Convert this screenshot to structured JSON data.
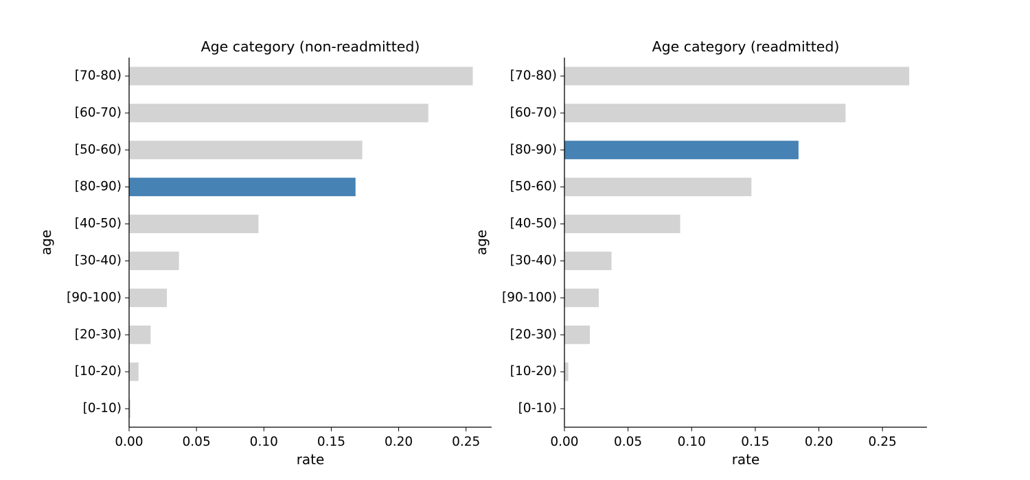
{
  "chart_data": [
    {
      "type": "bar",
      "orientation": "horizontal",
      "title": "Age category (non-readmitted)",
      "xlabel": "rate",
      "ylabel": "age",
      "categories": [
        "[70-80)",
        "[60-70)",
        "[50-60)",
        "[80-90)",
        "[40-50)",
        "[30-40)",
        "[90-100)",
        "[20-30)",
        "[10-20)",
        "[0-10)"
      ],
      "values": [
        0.255,
        0.222,
        0.173,
        0.168,
        0.096,
        0.037,
        0.028,
        0.016,
        0.007,
        0.001
      ],
      "highlight": "[80-90)",
      "xlim": [
        0,
        0.269
      ],
      "xticks": [
        "0.00",
        "0.05",
        "0.10",
        "0.15",
        "0.20",
        "0.25"
      ],
      "grid": false,
      "legend": "none"
    },
    {
      "type": "bar",
      "orientation": "horizontal",
      "title": "Age category (readmitted)",
      "xlabel": "rate",
      "ylabel": "age",
      "categories": [
        "[70-80)",
        "[60-70)",
        "[80-90)",
        "[50-60)",
        "[40-50)",
        "[30-40)",
        "[90-100)",
        "[20-30)",
        "[10-20)",
        "[0-10)"
      ],
      "values": [
        0.271,
        0.221,
        0.184,
        0.147,
        0.091,
        0.037,
        0.027,
        0.02,
        0.003,
        0.0
      ],
      "highlight": "[80-90)",
      "xlim": [
        0,
        0.285
      ],
      "xticks": [
        "0.00",
        "0.05",
        "0.10",
        "0.15",
        "0.20",
        "0.25"
      ],
      "grid": false,
      "legend": "none"
    }
  ],
  "colors": {
    "bar": "#d3d3d3",
    "highlight": "#4682b4",
    "axis": "#000000"
  }
}
